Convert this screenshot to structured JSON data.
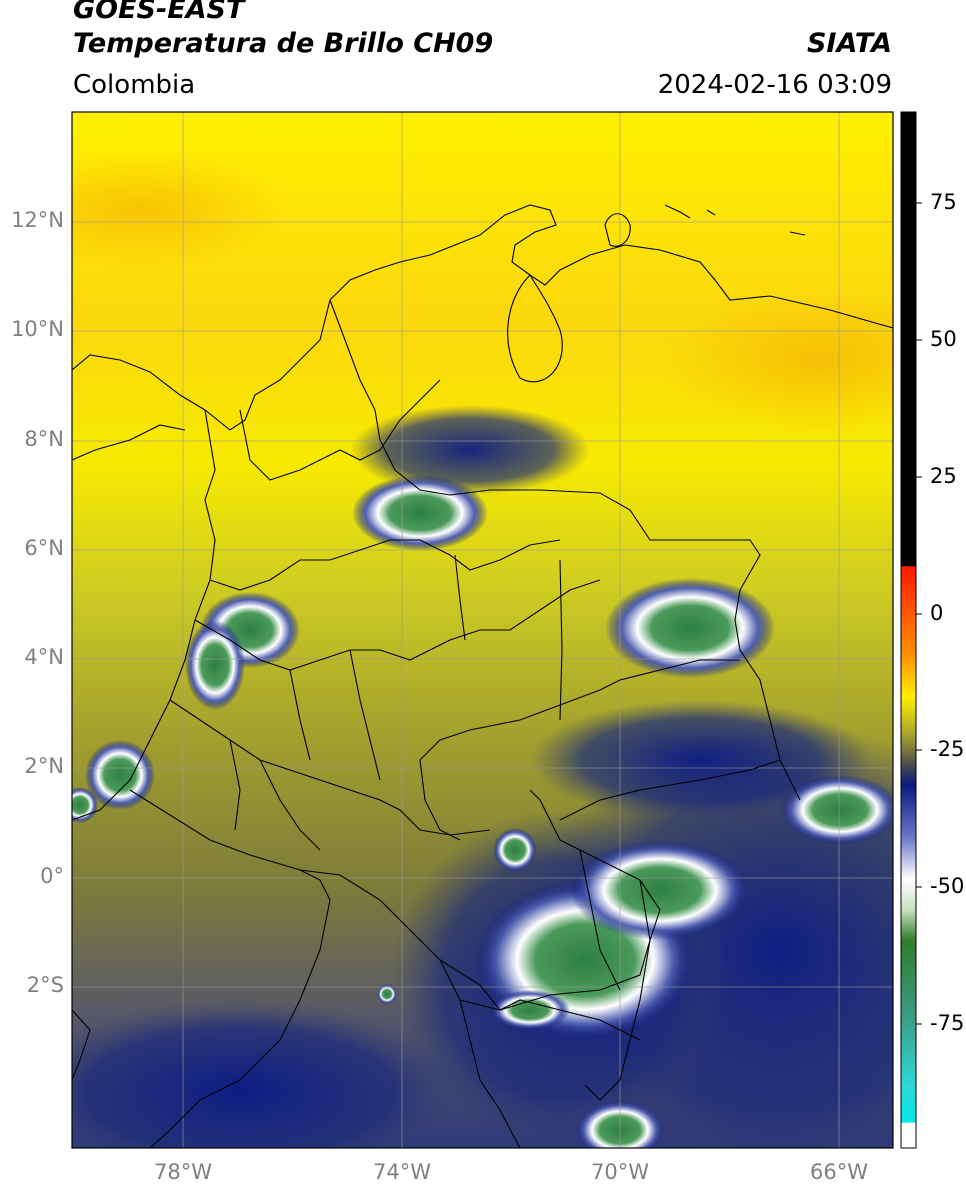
{
  "header": {
    "satellite": "GOES-EAST",
    "product": "Temperatura de Brillo CH09",
    "organization": "SIATA",
    "region": "Colombia",
    "timestamp": "2024-02-16 03:09"
  },
  "map_frame": {
    "lat_labels": [
      "12°N",
      "10°N",
      "8°N",
      "6°N",
      "4°N",
      "2°N",
      "0°",
      "2°S"
    ],
    "lon_labels": [
      "78°W",
      "74°W",
      "70°W",
      "66°W"
    ]
  },
  "colorbar": {
    "tick_labels": [
      "75",
      "50",
      "25",
      "0",
      "-25",
      "-50",
      "-75"
    ]
  },
  "colors": {
    "cold_green": "#2f7d3a",
    "navy": "#0c1a7a",
    "yellow": "#ffee00",
    "olive": "#9a9a2c",
    "orange": "#f2b400"
  }
}
